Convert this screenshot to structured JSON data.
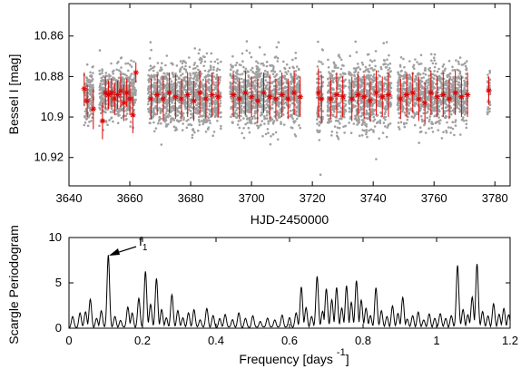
{
  "chart_data": [
    {
      "type": "scatter",
      "xlabel": "HJD-2450000",
      "ylabel": "Bessel I  [mag]",
      "xlim": [
        3640,
        3785
      ],
      "ylim": [
        10.934,
        10.844
      ],
      "y_inverted": true,
      "xticks": [
        3640,
        3660,
        3680,
        3700,
        3720,
        3740,
        3760,
        3780
      ],
      "yticks": [
        10.86,
        10.88,
        10.9,
        10.92
      ],
      "ytick_labels": [
        "10.86",
        "10.88",
        "10.9",
        "10.92"
      ],
      "colors": {
        "raw": "#a0a0a0",
        "binned": "#e00000"
      },
      "observing_segments": [
        {
          "start": 3645,
          "end": 3648,
          "center": 10.89,
          "spread": 0.011
        },
        {
          "start": 3650,
          "end": 3662,
          "center": 10.888,
          "spread": 0.01
        },
        {
          "start": 3666,
          "end": 3690,
          "center": 10.889,
          "spread": 0.013
        },
        {
          "start": 3693,
          "end": 3716,
          "center": 10.889,
          "spread": 0.013
        },
        {
          "start": 3721.5,
          "end": 3723.5,
          "center": 10.89,
          "spread": 0.018
        },
        {
          "start": 3725,
          "end": 3731,
          "center": 10.89,
          "spread": 0.014
        },
        {
          "start": 3732,
          "end": 3746,
          "center": 10.889,
          "spread": 0.014
        },
        {
          "start": 3748,
          "end": 3771,
          "center": 10.889,
          "spread": 0.012
        },
        {
          "start": 3777.5,
          "end": 3778.5,
          "center": 10.888,
          "spread": 0.009
        }
      ],
      "binned_points": [
        [
          3645,
          10.886,
          0.008
        ],
        [
          3646,
          10.892,
          0.008
        ],
        [
          3648,
          10.896,
          0.01
        ],
        [
          3651,
          10.902,
          0.009
        ],
        [
          3652,
          10.888,
          0.008
        ],
        [
          3653,
          10.889,
          0.007
        ],
        [
          3654,
          10.888,
          0.007
        ],
        [
          3655,
          10.891,
          0.008
        ],
        [
          3656,
          10.889,
          0.007
        ],
        [
          3657,
          10.887,
          0.008
        ],
        [
          3658,
          10.893,
          0.009
        ],
        [
          3659,
          10.888,
          0.007
        ],
        [
          3660,
          10.891,
          0.008
        ],
        [
          3661,
          10.899,
          0.009
        ],
        [
          3662,
          10.878,
          0.005
        ],
        [
          3667,
          10.891,
          0.01
        ],
        [
          3669,
          10.889,
          0.01
        ],
        [
          3671,
          10.891,
          0.011
        ],
        [
          3673,
          10.888,
          0.01
        ],
        [
          3675,
          10.89,
          0.011
        ],
        [
          3677,
          10.891,
          0.01
        ],
        [
          3679,
          10.889,
          0.011
        ],
        [
          3681,
          10.892,
          0.01
        ],
        [
          3683,
          10.888,
          0.011
        ],
        [
          3685,
          10.891,
          0.01
        ],
        [
          3687,
          10.889,
          0.011
        ],
        [
          3689,
          10.89,
          0.01
        ],
        [
          3694,
          10.889,
          0.011
        ],
        [
          3696,
          10.891,
          0.01
        ],
        [
          3698,
          10.888,
          0.011
        ],
        [
          3700,
          10.89,
          0.01
        ],
        [
          3702,
          10.892,
          0.011
        ],
        [
          3704,
          10.888,
          0.01
        ],
        [
          3706,
          10.89,
          0.011
        ],
        [
          3708,
          10.891,
          0.01
        ],
        [
          3710,
          10.889,
          0.011
        ],
        [
          3712,
          10.891,
          0.01
        ],
        [
          3714,
          10.888,
          0.011
        ],
        [
          3716,
          10.89,
          0.01
        ],
        [
          3722,
          10.888,
          0.012
        ],
        [
          3723,
          10.891,
          0.012
        ],
        [
          3726,
          10.891,
          0.01
        ],
        [
          3728,
          10.889,
          0.011
        ],
        [
          3730,
          10.89,
          0.01
        ],
        [
          3733,
          10.891,
          0.011
        ],
        [
          3735,
          10.889,
          0.01
        ],
        [
          3737,
          10.89,
          0.011
        ],
        [
          3739,
          10.892,
          0.01
        ],
        [
          3741,
          10.888,
          0.011
        ],
        [
          3743,
          10.89,
          0.01
        ],
        [
          3745,
          10.889,
          0.011
        ],
        [
          3749,
          10.891,
          0.01
        ],
        [
          3751,
          10.889,
          0.011
        ],
        [
          3753,
          10.888,
          0.01
        ],
        [
          3755,
          10.891,
          0.011
        ],
        [
          3757,
          10.893,
          0.01
        ],
        [
          3759,
          10.888,
          0.011
        ],
        [
          3761,
          10.89,
          0.01
        ],
        [
          3763,
          10.889,
          0.011
        ],
        [
          3765,
          10.891,
          0.01
        ],
        [
          3767,
          10.888,
          0.011
        ],
        [
          3769,
          10.89,
          0.01
        ],
        [
          3771,
          10.889,
          0.011
        ],
        [
          3778,
          10.887,
          0.007
        ]
      ]
    },
    {
      "type": "line",
      "xlabel": "Frequency [days",
      "xlabel_superscript": "-1",
      "xlabel_close": "]",
      "ylabel": "Scargle Periodogram",
      "xlim": [
        0,
        1.2
      ],
      "ylim": [
        0,
        10
      ],
      "xticks": [
        0,
        0.2,
        0.4,
        0.6,
        0.8,
        1.0,
        1.2
      ],
      "xtick_labels": [
        "0",
        "0.2",
        "0.4",
        "0.6",
        "0.8",
        "1",
        "1.2"
      ],
      "yticks": [
        0,
        5,
        10
      ],
      "ytick_labels": [
        "0",
        "5",
        "10"
      ],
      "line_color": "#000000",
      "annotation": {
        "text": "f",
        "subscript": "1",
        "points_to": [
          0.107,
          8.0
        ]
      },
      "peaks": [
        [
          0.01,
          1.2
        ],
        [
          0.03,
          1.6
        ],
        [
          0.045,
          1.8
        ],
        [
          0.058,
          3.1
        ],
        [
          0.075,
          1.0
        ],
        [
          0.088,
          1.9
        ],
        [
          0.107,
          8.0
        ],
        [
          0.125,
          1.2
        ],
        [
          0.14,
          0.8
        ],
        [
          0.16,
          2.3
        ],
        [
          0.172,
          1.6
        ],
        [
          0.19,
          3.2
        ],
        [
          0.208,
          6.2
        ],
        [
          0.222,
          2.6
        ],
        [
          0.238,
          5.4
        ],
        [
          0.252,
          2.0
        ],
        [
          0.265,
          1.1
        ],
        [
          0.28,
          3.6
        ],
        [
          0.296,
          1.9
        ],
        [
          0.31,
          1.1
        ],
        [
          0.325,
          1.6
        ],
        [
          0.34,
          2.0
        ],
        [
          0.357,
          0.9
        ],
        [
          0.375,
          2.1
        ],
        [
          0.392,
          1.3
        ],
        [
          0.41,
          1.0
        ],
        [
          0.425,
          1.5
        ],
        [
          0.445,
          0.9
        ],
        [
          0.462,
          1.6
        ],
        [
          0.48,
          1.0
        ],
        [
          0.5,
          1.3
        ],
        [
          0.52,
          0.7
        ],
        [
          0.54,
          1.1
        ],
        [
          0.56,
          0.9
        ],
        [
          0.58,
          1.4
        ],
        [
          0.6,
          1.1
        ],
        [
          0.618,
          1.6
        ],
        [
          0.632,
          4.5
        ],
        [
          0.645,
          2.2
        ],
        [
          0.66,
          1.2
        ],
        [
          0.675,
          5.7
        ],
        [
          0.69,
          1.8
        ],
        [
          0.7,
          4.3
        ],
        [
          0.715,
          3.1
        ],
        [
          0.728,
          4.4
        ],
        [
          0.742,
          2.2
        ],
        [
          0.755,
          4.6
        ],
        [
          0.768,
          2.8
        ],
        [
          0.782,
          5.2
        ],
        [
          0.795,
          3.0
        ],
        [
          0.808,
          2.2
        ],
        [
          0.82,
          1.3
        ],
        [
          0.835,
          4.4
        ],
        [
          0.85,
          1.9
        ],
        [
          0.865,
          1.2
        ],
        [
          0.88,
          2.4
        ],
        [
          0.895,
          1.6
        ],
        [
          0.908,
          3.3
        ],
        [
          0.92,
          1.0
        ],
        [
          0.935,
          1.3
        ],
        [
          0.95,
          1.7
        ],
        [
          0.965,
          0.9
        ],
        [
          0.98,
          1.5
        ],
        [
          0.995,
          1.0
        ],
        [
          1.01,
          1.6
        ],
        [
          1.025,
          1.0
        ],
        [
          1.04,
          1.3
        ],
        [
          1.057,
          6.9
        ],
        [
          1.072,
          2.0
        ],
        [
          1.085,
          1.4
        ],
        [
          1.097,
          3.4
        ],
        [
          1.11,
          7.0
        ],
        [
          1.125,
          1.8
        ],
        [
          1.14,
          1.3
        ],
        [
          1.155,
          2.6
        ],
        [
          1.17,
          1.5
        ],
        [
          1.183,
          2.1
        ],
        [
          1.196,
          1.4
        ]
      ]
    }
  ]
}
